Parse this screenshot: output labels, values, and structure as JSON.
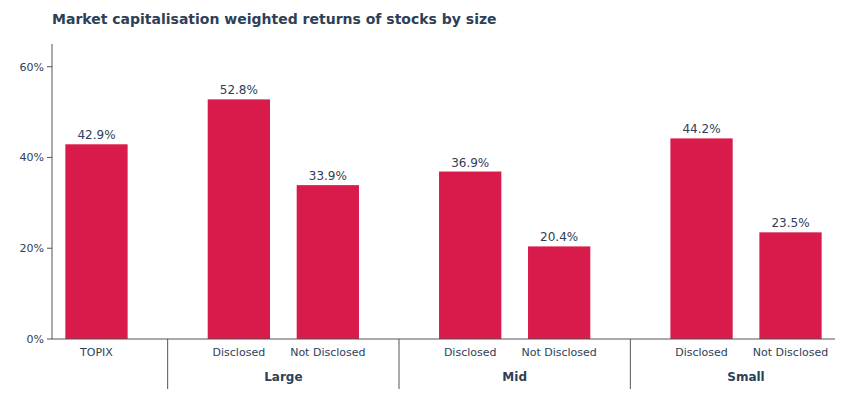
{
  "chart_data": {
    "type": "bar",
    "title": "Market capitalisation weighted returns of stocks by size",
    "groups": [
      {
        "label": null,
        "categories": [
          "TOPIX"
        ],
        "values": [
          42.9
        ],
        "value_labels": [
          "42.9%"
        ]
      },
      {
        "label": "Large",
        "categories": [
          "Disclosed",
          "Not Disclosed"
        ],
        "values": [
          52.8,
          33.9
        ],
        "value_labels": [
          "52.8%",
          "33.9%"
        ]
      },
      {
        "label": "Mid",
        "categories": [
          "Disclosed",
          "Not Disclosed"
        ],
        "values": [
          36.9,
          20.4
        ],
        "value_labels": [
          "36.9%",
          "20.4%"
        ]
      },
      {
        "label": "Small",
        "categories": [
          "Disclosed",
          "Not Disclosed"
        ],
        "values": [
          44.2,
          23.5
        ],
        "value_labels": [
          "44.2%",
          "23.5%"
        ]
      }
    ],
    "color": "#D81B4A",
    "ylim": [
      0,
      65
    ],
    "yticks": [
      {
        "value": 0,
        "label": "0%"
      },
      {
        "value": 20,
        "label": "20%"
      },
      {
        "value": 40,
        "label": "40%"
      },
      {
        "value": 60,
        "label": "60%"
      }
    ],
    "grid": false,
    "data_labels": true
  }
}
